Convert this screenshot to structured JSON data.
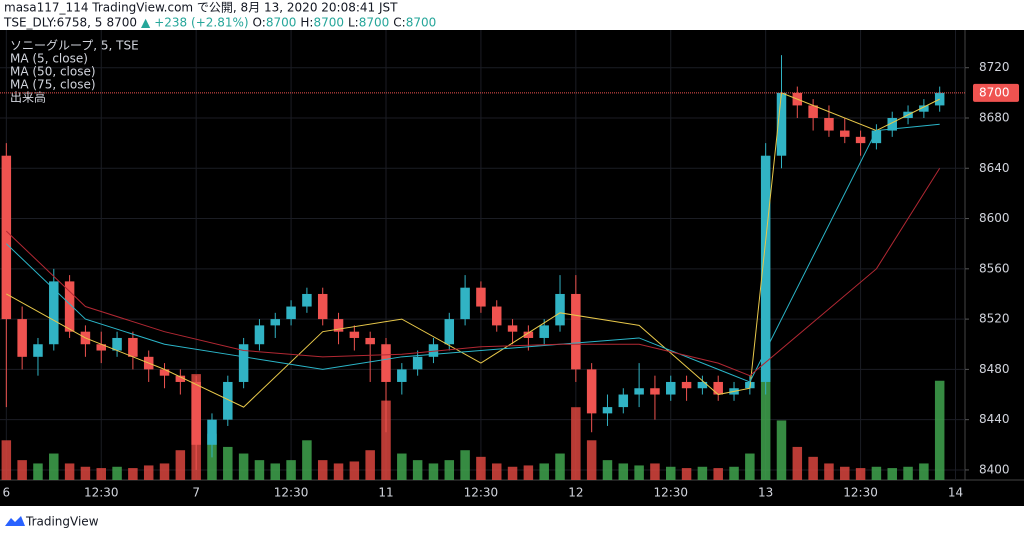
{
  "header": {
    "line1": "masa117_114 TradingView.com で公開, 8月 13, 2020 20:08:41 JST",
    "symbol": "TSE_DLY:6758, 5",
    "last": "8700",
    "arrow": "▲",
    "change": "+238 (+2.81%)",
    "ohlc": [
      {
        "label": "O:",
        "value": "8700"
      },
      {
        "label": "H:",
        "value": "8700"
      },
      {
        "label": "L:",
        "value": "8700"
      },
      {
        "label": "C:",
        "value": "8700"
      }
    ]
  },
  "chart_data": {
    "type": "candlestick",
    "title": "ソニーグループ, 5, TSE",
    "volume_label": "出来高",
    "up_color": "#31b3c4",
    "down_color": "#ef5350",
    "volume_up_color": "#3fa34d",
    "volume_down_color": "#d9453e",
    "grid": true,
    "xlim": [
      -0.4,
      60.6
    ],
    "ylim": [
      8392,
      8750
    ],
    "y2lim": [
      0,
      680
    ],
    "xticks": [
      {
        "value": 0,
        "label": "6"
      },
      {
        "value": 6,
        "label": "12:30"
      },
      {
        "value": 12,
        "label": "7"
      },
      {
        "value": 18,
        "label": "12:30"
      },
      {
        "value": 24,
        "label": "11"
      },
      {
        "value": 30,
        "label": "12:30"
      },
      {
        "value": 36,
        "label": "12"
      },
      {
        "value": 42,
        "label": "12:30"
      },
      {
        "value": 48,
        "label": "13"
      },
      {
        "value": 54,
        "label": "12:30"
      },
      {
        "value": 60,
        "label": "14"
      }
    ],
    "yticks": [
      8400,
      8440,
      8480,
      8520,
      8560,
      8600,
      8640,
      8680,
      8720
    ],
    "last_price": 8700,
    "open": [
      8650,
      8520,
      8490,
      8500,
      8550,
      8510,
      8500,
      8495,
      8505,
      8490,
      8480,
      8475,
      8470,
      8420,
      8440,
      8470,
      8500,
      8515,
      8520,
      8530,
      8540,
      8520,
      8510,
      8505,
      8500,
      8470,
      8480,
      8490,
      8500,
      8520,
      8545,
      8530,
      8515,
      8510,
      8505,
      8515,
      8540,
      8480,
      8445,
      8450,
      8460,
      8465,
      8460,
      8470,
      8465,
      8470,
      8460,
      8465,
      8470,
      8650,
      8700,
      8690,
      8680,
      8670,
      8665,
      8660,
      8670,
      8680,
      8685,
      8690
    ],
    "high": [
      8660,
      8530,
      8505,
      8560,
      8555,
      8515,
      8510,
      8510,
      8510,
      8495,
      8485,
      8480,
      8475,
      8445,
      8475,
      8505,
      8520,
      8525,
      8535,
      8545,
      8545,
      8525,
      8515,
      8510,
      8505,
      8485,
      8495,
      8505,
      8525,
      8555,
      8550,
      8535,
      8520,
      8515,
      8520,
      8555,
      8555,
      8485,
      8460,
      8465,
      8485,
      8475,
      8475,
      8475,
      8475,
      8475,
      8470,
      8475,
      8660,
      8730,
      8705,
      8695,
      8690,
      8680,
      8670,
      8675,
      8685,
      8690,
      8695,
      8705
    ],
    "low": [
      8450,
      8480,
      8475,
      8495,
      8505,
      8490,
      8485,
      8490,
      8480,
      8470,
      8465,
      8460,
      8400,
      8410,
      8435,
      8465,
      8495,
      8505,
      8515,
      8525,
      8515,
      8500,
      8495,
      8470,
      8430,
      8460,
      8475,
      8485,
      8495,
      8515,
      8525,
      8510,
      8500,
      8495,
      8500,
      8510,
      8470,
      8430,
      8435,
      8445,
      8450,
      8440,
      8455,
      8455,
      8460,
      8455,
      8455,
      8460,
      8460,
      8640,
      8680,
      8670,
      8665,
      8660,
      8650,
      8655,
      8665,
      8675,
      8680,
      8685
    ],
    "close": [
      8520,
      8490,
      8500,
      8550,
      8510,
      8500,
      8495,
      8505,
      8490,
      8480,
      8475,
      8470,
      8420,
      8440,
      8470,
      8500,
      8515,
      8520,
      8530,
      8540,
      8520,
      8510,
      8505,
      8500,
      8470,
      8480,
      8490,
      8500,
      8520,
      8545,
      8530,
      8515,
      8510,
      8505,
      8515,
      8540,
      8480,
      8445,
      8450,
      8460,
      8465,
      8460,
      8470,
      8465,
      8470,
      8460,
      8465,
      8470,
      8650,
      8700,
      8690,
      8680,
      8670,
      8665,
      8660,
      8670,
      8680,
      8685,
      8690,
      8700
    ],
    "volume": [
      60,
      30,
      25,
      40,
      25,
      20,
      18,
      20,
      18,
      22,
      25,
      45,
      160,
      70,
      50,
      40,
      30,
      25,
      30,
      60,
      30,
      25,
      28,
      45,
      120,
      40,
      30,
      25,
      30,
      45,
      35,
      25,
      20,
      22,
      25,
      40,
      110,
      60,
      30,
      25,
      22,
      25,
      20,
      18,
      20,
      18,
      20,
      40,
      170,
      90,
      50,
      35,
      25,
      20,
      18,
      20,
      18,
      20,
      25,
      150
    ],
    "series": [
      {
        "name": "MA (5, close)",
        "color": "#e8c84a",
        "x": [
          0,
          5,
          10,
          15,
          20,
          25,
          30,
          35,
          40,
          45,
          47,
          49,
          55,
          59
        ],
        "values": [
          8540,
          8505,
          8480,
          8450,
          8510,
          8520,
          8485,
          8525,
          8515,
          8460,
          8465,
          8700,
          8670,
          8695
        ]
      },
      {
        "name": "MA (50, close)",
        "color": "#2bb6c9",
        "x": [
          0,
          5,
          10,
          15,
          20,
          25,
          30,
          35,
          40,
          45,
          47,
          55,
          59
        ],
        "values": [
          8580,
          8520,
          8500,
          8490,
          8480,
          8490,
          8495,
          8500,
          8505,
          8480,
          8470,
          8670,
          8675
        ]
      },
      {
        "name": "MA (75, close)",
        "color": "#b22833",
        "x": [
          0,
          5,
          10,
          15,
          20,
          25,
          30,
          35,
          40,
          45,
          47,
          55,
          59
        ],
        "values": [
          8590,
          8530,
          8510,
          8495,
          8490,
          8492,
          8498,
          8500,
          8500,
          8485,
          8475,
          8560,
          8640
        ]
      }
    ]
  },
  "footer": {
    "brand": "TradingView"
  }
}
